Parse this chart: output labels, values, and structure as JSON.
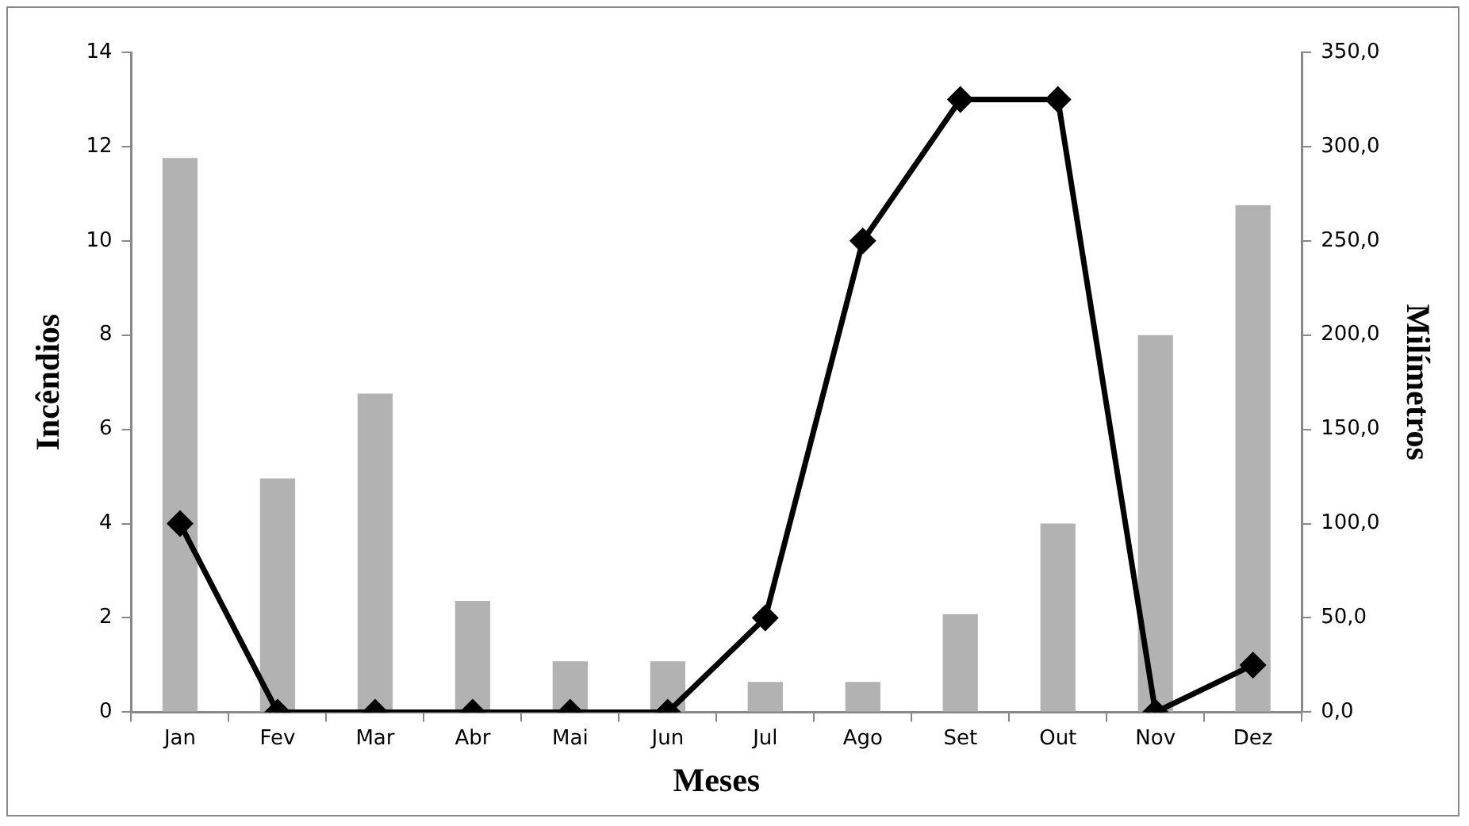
{
  "chart_data": {
    "type": "bar",
    "xlabel": "Meses",
    "ylabel": "Incêndios",
    "y2label": "Milímetros",
    "categories": [
      "Jan",
      "Fev",
      "Mar",
      "Abr",
      "Mai",
      "Jun",
      "Jul",
      "Ago",
      "Set",
      "Out",
      "Nov",
      "Dez"
    ],
    "series": [
      {
        "axis": "y2",
        "color": "#b2b2b2",
        "values": [
          294,
          124,
          169,
          59,
          27,
          27,
          16,
          16,
          52,
          100,
          200,
          269
        ]
      },
      {
        "type": "line",
        "axis": "y",
        "color": "#000000",
        "values": [
          4,
          0,
          0,
          0,
          0,
          0,
          2,
          10,
          13,
          13,
          0,
          1
        ]
      }
    ],
    "ylim": [
      0,
      14
    ],
    "yticks": [
      0,
      2,
      4,
      6,
      8,
      10,
      12,
      14
    ],
    "y2lim": [
      0,
      350
    ],
    "y2ticks": [
      {
        "value": 0,
        "label": "0,0"
      },
      {
        "value": 50,
        "label": "50,0"
      },
      {
        "value": 100,
        "label": "100,0"
      },
      {
        "value": 150,
        "label": "150,0"
      },
      {
        "value": 200,
        "label": "200,0"
      },
      {
        "value": 250,
        "label": "250,0"
      },
      {
        "value": 300,
        "label": "300,0"
      },
      {
        "value": 350,
        "label": "350,0"
      }
    ],
    "grid": false,
    "legend": false,
    "marker": "diamond",
    "line_style": "solid"
  }
}
